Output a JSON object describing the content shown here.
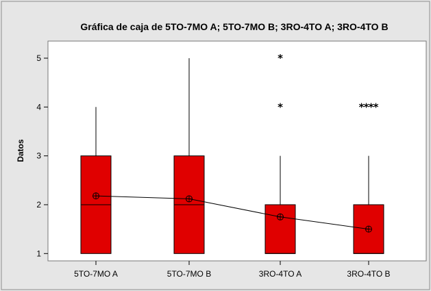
{
  "chart_data": {
    "type": "boxplot",
    "title": "Gráfica de caja de 5TO-7MO A; 5TO-7MO B; 3RO-4TO A; 3RO-4TO B",
    "xlabel": "",
    "ylabel": "Datos",
    "ylim": [
      0.85,
      5.35
    ],
    "yticks": [
      1,
      2,
      3,
      4,
      5
    ],
    "grid": false,
    "legend": "none",
    "colors": {
      "box_fill": "#e00000",
      "frame_bg": "#e6e6e6",
      "plot_bg": "#ffffff",
      "line": "#000000"
    },
    "categories": [
      "5TO-7MO A",
      "5TO-7MO B",
      "3RO-4TO A",
      "3RO-4TO B"
    ],
    "boxes": [
      {
        "min": 1,
        "q1": 1,
        "median": 2,
        "q3": 3,
        "max": 4,
        "mean": 2.18,
        "outliers": []
      },
      {
        "min": 1,
        "q1": 1,
        "median": 2,
        "q3": 3,
        "max": 5,
        "mean": 2.12,
        "outliers": []
      },
      {
        "min": 1,
        "q1": 1,
        "median": 1,
        "q3": 2,
        "max": 3,
        "mean": 1.75,
        "outliers": [
          4,
          5
        ]
      },
      {
        "min": 1,
        "q1": 1,
        "median": 1,
        "q3": 2,
        "max": 3,
        "mean": 1.5,
        "outliers": [
          4,
          4,
          4,
          4
        ]
      }
    ],
    "mean_connect_line": true
  }
}
